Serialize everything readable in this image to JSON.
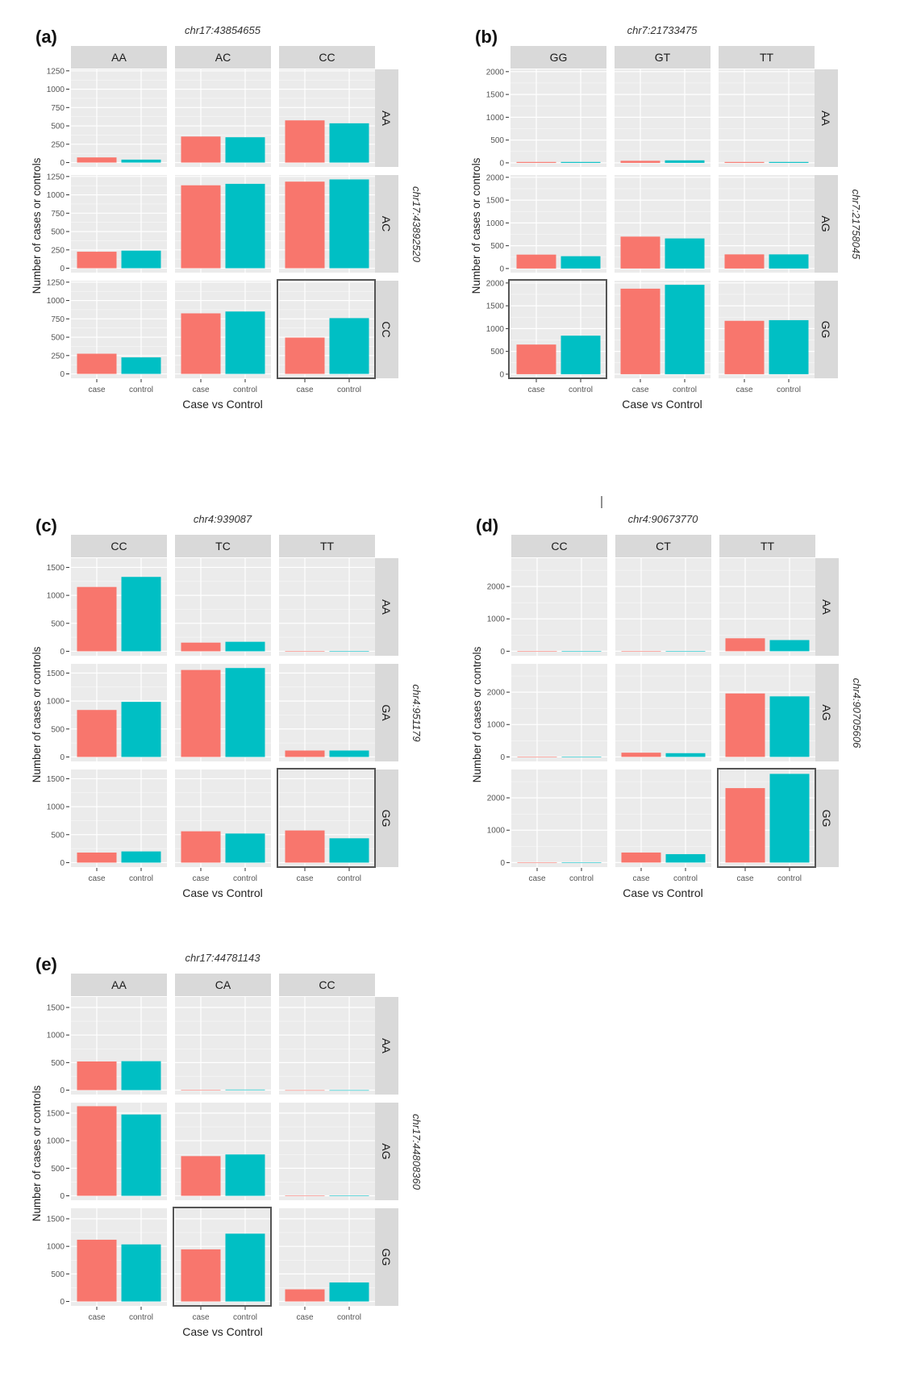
{
  "colors": {
    "case": "#f8766d",
    "control": "#00bfc4",
    "panel_bg": "#ebebeb",
    "strip_bg": "#d9d9d9",
    "highlight": "#555555"
  },
  "chart_data": [
    {
      "type": "bar",
      "label": "(a)",
      "title": "chr17:43854655",
      "row_facet_title": "chr17:43892520",
      "xlabel": "Case vs Control",
      "ylabel": "Number of cases or controls",
      "categories": [
        "case",
        "control"
      ],
      "col_facets": [
        "AA",
        "AC",
        "CC"
      ],
      "row_facets": [
        "AA",
        "AC",
        "CC"
      ],
      "yticks": [
        "0",
        "250",
        "500",
        "750",
        "1000",
        "1250"
      ],
      "ylim": [
        -60,
        1270
      ],
      "values": [
        [
          [
            70,
            40
          ],
          [
            355,
            345
          ],
          [
            575,
            535
          ]
        ],
        [
          [
            225,
            240
          ],
          [
            1130,
            1150
          ],
          [
            1180,
            1210
          ]
        ],
        [
          [
            275,
            225
          ],
          [
            825,
            850
          ],
          [
            495,
            760
          ]
        ]
      ],
      "highlight": {
        "row": 2,
        "col": 2
      }
    },
    {
      "type": "bar",
      "label": "(b)",
      "title": "chr7:21733475",
      "row_facet_title": "chr7:21758045",
      "xlabel": "Case vs Control",
      "ylabel": "Number of cases or controls",
      "categories": [
        "case",
        "control"
      ],
      "col_facets": [
        "GG",
        "GT",
        "TT"
      ],
      "row_facets": [
        "AA",
        "AG",
        "GG"
      ],
      "yticks": [
        "0",
        "500",
        "1000",
        "1500",
        "2000"
      ],
      "ylim": [
        -90,
        2050
      ],
      "values": [
        [
          [
            20,
            20
          ],
          [
            45,
            55
          ],
          [
            20,
            20
          ]
        ],
        [
          [
            305,
            270
          ],
          [
            700,
            660
          ],
          [
            310,
            310
          ]
        ],
        [
          [
            650,
            845
          ],
          [
            1875,
            1960
          ],
          [
            1170,
            1185
          ]
        ]
      ],
      "highlight": {
        "row": 2,
        "col": 0
      }
    },
    {
      "type": "bar",
      "label": "(c)",
      "title": "chr4:939087",
      "row_facet_title": "chr4:951179",
      "xlabel": "Case vs Control",
      "ylabel": "Number of cases or controls",
      "categories": [
        "case",
        "control"
      ],
      "col_facets": [
        "CC",
        "TC",
        "TT"
      ],
      "row_facets": [
        "AA",
        "GA",
        "GG"
      ],
      "yticks": [
        "0",
        "500",
        "1000",
        "1500"
      ],
      "ylim": [
        -80,
        1665
      ],
      "values": [
        [
          [
            1150,
            1330
          ],
          [
            155,
            170
          ],
          [
            5,
            5
          ]
        ],
        [
          [
            840,
            985
          ],
          [
            1555,
            1590
          ],
          [
            115,
            115
          ]
        ],
        [
          [
            180,
            200
          ],
          [
            560,
            520
          ],
          [
            575,
            435
          ]
        ]
      ],
      "highlight": {
        "row": 2,
        "col": 2
      }
    },
    {
      "type": "bar",
      "label": "(d)",
      "title": "chr4:90673770",
      "row_facet_title": "chr4:90705606",
      "xlabel": "Case vs Control",
      "ylabel": "Number of cases or controls",
      "categories": [
        "case",
        "control"
      ],
      "col_facets": [
        "CC",
        "CT",
        "TT"
      ],
      "row_facets": [
        "AA",
        "AG",
        "GG"
      ],
      "yticks": [
        "0",
        "1000",
        "2000"
      ],
      "ylim": [
        -140,
        2875
      ],
      "values": [
        [
          [
            0,
            0
          ],
          [
            0,
            5
          ],
          [
            400,
            345
          ]
        ],
        [
          [
            0,
            0
          ],
          [
            130,
            115
          ],
          [
            1960,
            1870
          ]
        ],
        [
          [
            10,
            10
          ],
          [
            310,
            260
          ],
          [
            2300,
            2740
          ]
        ]
      ],
      "highlight": {
        "row": 2,
        "col": 2
      }
    },
    {
      "type": "bar",
      "label": "(e)",
      "title": "chr17:44781143",
      "row_facet_title": "chr17:44808360",
      "xlabel": "Case vs Control",
      "ylabel": "Number of cases or controls",
      "categories": [
        "case",
        "control"
      ],
      "col_facets": [
        "AA",
        "CA",
        "CC"
      ],
      "row_facets": [
        "AA",
        "AG",
        "GG"
      ],
      "yticks": [
        "0",
        "500",
        "1000",
        "1500"
      ],
      "ylim": [
        -80,
        1690
      ],
      "values": [
        [
          [
            520,
            525
          ],
          [
            5,
            10
          ],
          [
            0,
            0
          ]
        ],
        [
          [
            1625,
            1475
          ],
          [
            720,
            750
          ],
          [
            5,
            5
          ]
        ],
        [
          [
            1120,
            1035
          ],
          [
            945,
            1230
          ],
          [
            220,
            345
          ]
        ]
      ],
      "highlight": {
        "row": 2,
        "col": 1
      }
    }
  ]
}
